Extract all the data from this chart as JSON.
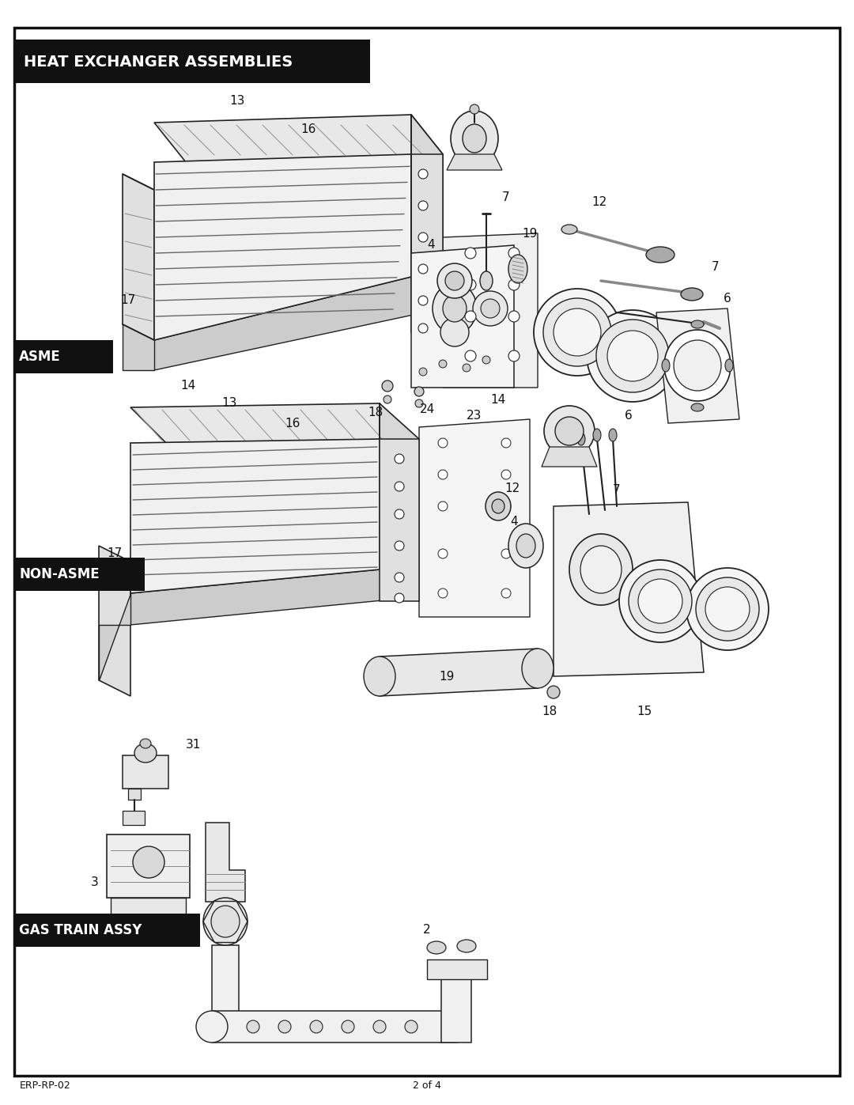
{
  "page_bg": "#ffffff",
  "border_color": "#1a1a1a",
  "border_lw": 2.5,
  "title_bg": "#1a1a1a",
  "title_text": "HEAT EXCHANGER ASSEMBLIES",
  "title_color": "#ffffff",
  "title_fontsize": 14,
  "label_bg": "#1a1a1a",
  "label_color": "#ffffff",
  "label_fontsize": 12,
  "asme_label": "ASME",
  "non_asme_label": "NON-ASME",
  "gas_train_label": "GAS TRAIN ASSY",
  "footer_left": "ERP-RP-02",
  "footer_center": "2 of 4",
  "num_fs": 11,
  "dc": "#222222",
  "lw": 1.1,
  "fig_w": 10.8,
  "fig_h": 13.97
}
